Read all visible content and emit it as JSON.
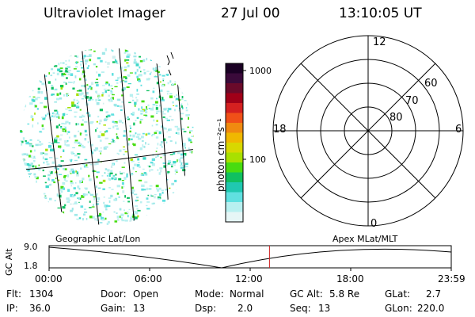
{
  "header": {
    "title": "Ultraviolet Imager",
    "date": "27 Jul 00",
    "time": "13:10:05 UT"
  },
  "colorbar": {
    "label": "photon cm⁻²s⁻¹",
    "ticks": [
      "1000",
      "100"
    ],
    "colors": [
      "#1a0024",
      "#3a0a3a",
      "#6a0a2a",
      "#a00018",
      "#d42020",
      "#f05018",
      "#f08a10",
      "#f0b800",
      "#d8d800",
      "#a8e000",
      "#48dc10",
      "#10c060",
      "#20c8b0",
      "#60e0e0",
      "#b8f0f0",
      "#e6f6f6"
    ]
  },
  "polar_plot": {
    "mlt_labels": {
      "top": "12",
      "left": "18",
      "right": "6",
      "bottom": "0"
    },
    "lat_labels": [
      "60",
      "70",
      "80"
    ]
  },
  "image_panel": {
    "left_label": "Geographic Lat/Lon",
    "right_label": "Apex MLat/MLT"
  },
  "altitude_strip": {
    "ylabel": "GC Alt",
    "ytick": "9.0",
    "ytick_low": "1.8",
    "xticks": [
      "00:00",
      "06:00",
      "12:00",
      "18:00",
      "23:59"
    ],
    "current_time_fraction": 0.548
  },
  "info": {
    "flt_label": "Flt:",
    "flt_value": "1304",
    "ip_label": "IP:",
    "ip_value": "36.0",
    "door_label": "Door:",
    "door_value": "Open",
    "gain_label": "Gain:",
    "gain_value": "13",
    "mode_label": "Mode:",
    "mode_value": "Normal",
    "dsp_label": "Dsp:",
    "dsp_value": "2.0",
    "gcalt_label": "GC Alt:",
    "gcalt_value": "5.8 Re",
    "seq_label": "Seq:",
    "seq_value": "13",
    "glat_label": "GLat:",
    "glat_value": "2.7",
    "glon_label": "GLon:",
    "glon_value": "220.0"
  }
}
